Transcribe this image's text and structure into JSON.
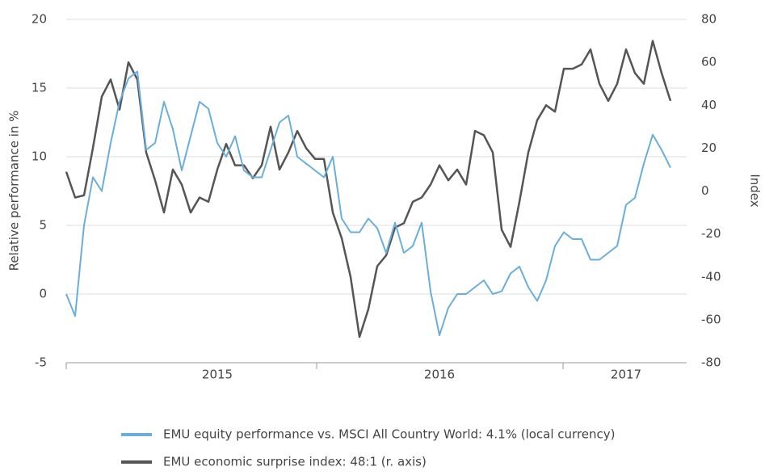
{
  "chart_data": {
    "type": "line",
    "y_label": "Relative performance in %",
    "y2_label": "Index",
    "categories": [
      null,
      null,
      null,
      null,
      null,
      null,
      null,
      null,
      null,
      null,
      null,
      null,
      null,
      null,
      null,
      null,
      null,
      "2015",
      null,
      null,
      null,
      null,
      null,
      null,
      null,
      null,
      null,
      null,
      null,
      null,
      null,
      null,
      null,
      null,
      null,
      null,
      null,
      null,
      null,
      null,
      null,
      null,
      "2016",
      null,
      null,
      null,
      null,
      null,
      null,
      null,
      null,
      null,
      null,
      null,
      null,
      null,
      null,
      null,
      null,
      null,
      null,
      null,
      null,
      "2017",
      null,
      null,
      null,
      null,
      null
    ],
    "ylim": [
      -5,
      20
    ],
    "yticks": [
      -5,
      0,
      5,
      10,
      15,
      20
    ],
    "y2lim": [
      -80,
      80
    ],
    "y2ticks": [
      -80,
      -60,
      -40,
      -20,
      0,
      20,
      40,
      60,
      80
    ],
    "grid": true,
    "series": [
      {
        "name": "EMU equity performance vs. MSCI All Country World: 4.1% (local currency)",
        "color": "#6aaedb",
        "values": [
          0,
          -1.6,
          5,
          8.5,
          7.5,
          11,
          14,
          15.7,
          16.2,
          10.5,
          11,
          14,
          12,
          9,
          11.5,
          14,
          13.5,
          11,
          10,
          11.5,
          9,
          8.5,
          8.5,
          10.5,
          12.5,
          13,
          10,
          9.5,
          9,
          8.5,
          10,
          5.5,
          4.5,
          4.5,
          5.5,
          4.8,
          3,
          5.2,
          3,
          3.5,
          5.2,
          0.2,
          -3,
          -1,
          0,
          0,
          0.5,
          1,
          0,
          0.2,
          1.5,
          2,
          0.5,
          -0.5,
          1,
          3.5,
          4.5,
          4,
          4,
          2.5,
          2.5,
          3,
          3.5,
          6.5,
          7,
          9.5,
          11.6,
          10.5,
          9.2
        ]
      },
      {
        "name": "EMU economic surprise index: 48:1 (r. axis)",
        "color": "#555555",
        "axis": "y2",
        "values": [
          9,
          -3,
          -2,
          20,
          44,
          52,
          38,
          60,
          52,
          18,
          5,
          -10,
          10,
          3,
          -10,
          -3,
          -5,
          10,
          22,
          12,
          12,
          6,
          12,
          30,
          10,
          18,
          28,
          20,
          15,
          15,
          -10,
          -22,
          -40,
          -68,
          -55,
          -35,
          -30,
          -17,
          -15,
          -5,
          -3,
          3,
          12,
          5,
          10,
          3,
          28,
          26,
          18,
          -18,
          -26,
          -5,
          18,
          33,
          40,
          37,
          57,
          57,
          59,
          66,
          50,
          42,
          50,
          66,
          55,
          50,
          70,
          55,
          42
        ]
      }
    ]
  }
}
